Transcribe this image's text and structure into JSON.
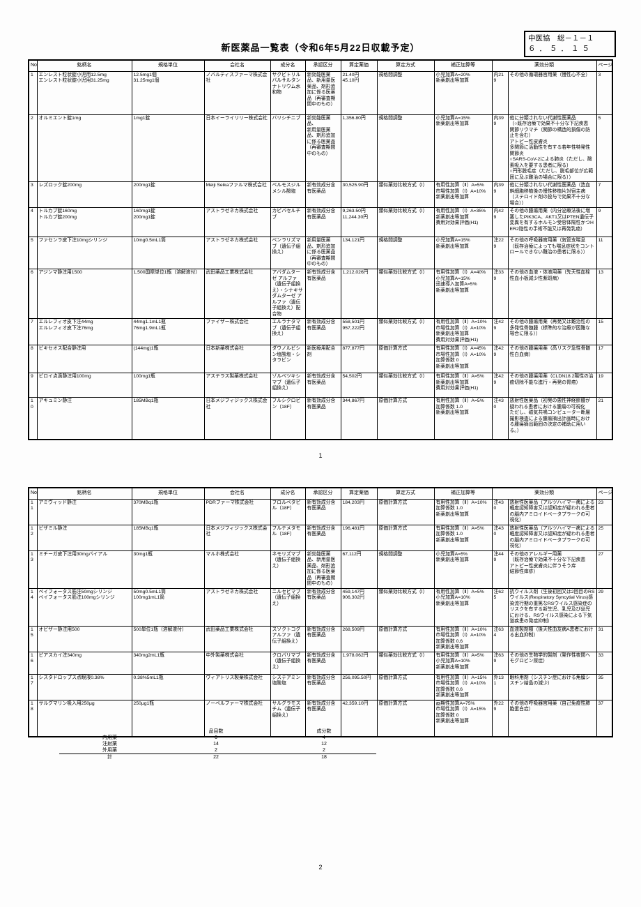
{
  "doc": {
    "title": "新医薬品一覧表（令和6年5月22日収載予定）",
    "ref_line1": "中医協　総－１－１",
    "ref_line2": "６．５．１５",
    "page1_number": "1",
    "page2_number": "2"
  },
  "table": {
    "headers": [
      "No.",
      "銘柄名",
      "規格単位",
      "会社名",
      "成分名",
      "承認区分",
      "算定薬価",
      "算定方式",
      "補正加算等",
      "薬効分類",
      "ページ"
    ]
  },
  "rows1": [
    {
      "no": "1",
      "brand": "エンレスト粒状錠小児用12.5mg\nエンレスト粒状錠小児用31.25mg",
      "spec": "12.5mg1個\n31.25mg1個",
      "company": "ノバルティスファーマ株式会社",
      "ingredient": "サクビトリルバルサルタンナトリウム水和物",
      "approval": "新効能医薬品、新用量医薬品、剤形追加に係る医薬品（再審査期間中のもの）",
      "price": "21.40円\n45.10円",
      "method": "規格間調整",
      "addition": "小児加算A=20%\n新薬創出等加算",
      "code": "内219",
      "category": "その他の循環器官用薬（慢性心不全）",
      "page": "3"
    },
    {
      "no": "2",
      "brand": "オルミエント錠1mg",
      "spec": "1mg1錠",
      "company": "日本イーライリリー株式会社",
      "ingredient": "バリシチニブ",
      "approval": "新効能医薬品、\n新用量医薬品、剤形追加に係る医薬品\n（再審査期間中のもの）",
      "price": "1,356.80円",
      "method": "規格間調整",
      "addition": "小児加算A=15%\n新薬創出等加算",
      "code": "内399",
      "category": "他に分類されない代謝性医薬品\n（○既存治療で効果不十分な下記疾患\n関節リウマチ（関節の構造的損傷の防止を含む）\nアトピー性皮膚炎\n多関節に活動性を有する若年性特発性関節炎\n○SARS-CoV-2による肺炎（ただし、酸素吸入を要する患者に限る）\n○円形脱毛症（ただし、脱毛部位が広範囲に及ぶ難治の場合に限る））",
      "page": "5"
    },
    {
      "no": "3",
      "brand": "レズロック錠200mg",
      "spec": "200mg1錠",
      "company": "Meiji Seikaファルマ株式会社",
      "ingredient": "ベルモスジルメシル酸塩",
      "approval": "新有効成分含有医薬品",
      "price": "30,525.90円",
      "method": "類似薬効比較方式（Ⅰ）",
      "addition": "有用性加算（Ⅱ）A=5%\n市場性加算（Ⅰ）A=10%\n新薬創出等加算",
      "code": "内399",
      "category": "他に分類されない代謝性医薬品（造血幹細胞移植後の慢性移植片対宿主病（ステロイド剤の投与で効果不十分な場合））",
      "page": "7"
    },
    {
      "no": "4",
      "brand": "トルカプ錠160mg\nトルカプ錠200mg",
      "spec": "160mg1錠\n200mg1錠",
      "company": "アストラゼネカ株式会社",
      "ingredient": "カピバセルチブ",
      "approval": "新有効成分含有医薬品",
      "price": "9,263.50円\n11,244.30円",
      "method": "類似薬効比較方式（Ⅰ）",
      "addition": "有用性加算（Ⅰ）A=35%\n新薬創出等加算\n費用対効果評価(H1)",
      "code": "内429",
      "category": "その他の腫瘍用薬（内分泌療法後に増悪したPIK3CA、AKT1又はPTEN遺伝子変異を有するホルモン受容体陽性かつHER2陰性の手術不能又は再発乳癌）",
      "page": "9"
    },
    {
      "no": "5",
      "brand": "ファセンラ皮下注10mgシリンジ",
      "spec": "10mg0.5mL1筒",
      "company": "アストラゼネカ株式会社",
      "ingredient": "ベンラリズマブ（遺伝子組換え）",
      "approval": "新用量医薬品、剤形追加に係る医薬品\n（再審査期間中のもの）",
      "price": "134,121円",
      "method": "規格間調整",
      "addition": "小児加算A=15%\n新薬創出等加算",
      "code": "注229",
      "category": "その他の呼吸器官用薬（気管支喘息（既存治療によっても喘息症状をコントロールできない難治の患者に限る））",
      "page": "11"
    },
    {
      "no": "6",
      "brand": "アジンマ静注用1500",
      "spec": "1,500国際単位1瓶（溶解液付）",
      "company": "武田薬品工業株式会社",
      "ingredient": "アバダムターゼ アルファ（遺伝子組換え）・シナキサダムターゼ アルファ（遺伝子組換え）配合物",
      "approval": "新有効成分含有医薬品",
      "price": "1,212,026円",
      "method": "類似薬効比較方式（Ⅰ）",
      "addition": "有用性加算（Ⅰ）A=40%\n小児加算A=15%\n迅速導入加算A=5%\n新薬創出等加算",
      "code": "注339",
      "category": "その他の血液・体液用薬（先天性血栓性血小板減少性紫斑病）",
      "page": "13"
    },
    {
      "no": "7",
      "brand": "エルレフィオ皮下注44mg\nエルレフィオ皮下注76mg",
      "spec": "44mg1.1mL1瓶\n76mg1.9mL1瓶",
      "company": "ファイザー株式会社",
      "ingredient": "エルラナタマブ（遺伝子組換え）",
      "approval": "新有効成分含有医薬品",
      "price": "558,501円\n957,222円",
      "method": "類似薬効比較方式（Ⅰ）",
      "addition": "有用性加算（Ⅱ）A=10%\n市場性加算（Ⅰ）A=10%\n新薬創出等加算\n費用対効果評価(H1)",
      "code": "注429",
      "category": "その他の腫瘍用薬（再発又は難治性の多発性骨髄腫（標準的な治療が困難な場合に限る））",
      "page": "15"
    },
    {
      "no": "8",
      "brand": "ビキセオス配合静注用",
      "spec": "(144mg)1瓶",
      "company": "日本新薬株式会社",
      "ingredient": "ダウノルビシン塩酸塩・シタラビン",
      "approval": "新医療用配合剤",
      "price": "877,877円",
      "method": "原価計算方式",
      "addition": "有用性加算（Ⅰ）A=45%\n市場性加算（Ⅰ）A=10%\n加算係数 0\n新薬創出等加算",
      "code": "注429",
      "category": "その他の腫瘍用薬（高リスク急性骨髄性白血病）",
      "page": "17"
    },
    {
      "no": "9",
      "brand": "ビロイ点滴静注用100mg",
      "spec": "100mg1瓶",
      "company": "アステラス製薬株式会社",
      "ingredient": "ゾルベツキシマブ（遺伝子組換え）",
      "approval": "新有効成分含有医薬品",
      "price": "54,502円",
      "method": "類似薬効比較方式（Ⅰ）",
      "addition": "有用性加算（Ⅱ）A=5%\n新薬創出等加算\n費用対効果評価(H1)",
      "code": "注429",
      "category": "その他の腫瘍用薬（CLDN18.2陽性の治癒切除不能な進行・再発の胃癌）",
      "page": "19"
    },
    {
      "no": "10",
      "brand": "アキュミン静注",
      "spec": "185MBq1瓶",
      "company": "日本メジフィジックス株式会社",
      "ingredient": "フルシクロビン（18F）",
      "approval": "新有効成分含有医薬品",
      "price": "344,867円",
      "method": "原価計算方式",
      "addition": "有用性加算（Ⅱ）A=5%\n加算係数 1.0\n新薬創出等加算",
      "code": "注430",
      "category": "放射性医薬品（初発の悪性神経膠腫が疑われる患者における腫瘍の可視化\nただし、磁気共鳴コンピューター断層撮影検査による腫瘍摘出計画時における腫瘍摘出範囲の決定の補助に用いる。）",
      "page": "21"
    }
  ],
  "rows2": [
    {
      "no": "11",
      "brand": "アミヴィッド静注",
      "spec": "370MBq1瓶",
      "company": "PDRファーマ株式会社",
      "ingredient": "フロルベタピル（18F）",
      "approval": "新有効成分含有医薬品",
      "price": "184,203円",
      "method": "原価計算方式",
      "addition": "有用性加算（Ⅱ）A=10%\n加算係数 1.0\n新薬創出等加算",
      "code": "注430",
      "category": "放射性医薬品（アルツハイマー病による軽度認知障害又は認知症が疑われる患者の脳内アミロイドベータプラークの可視化）",
      "page": "23"
    },
    {
      "no": "12",
      "brand": "ビザミル静注",
      "spec": "185MBq1瓶",
      "company": "日本メジフィジックス株式会社",
      "ingredient": "フルテメタモル（18F）",
      "approval": "新有効成分含有医薬品",
      "price": "196,481円",
      "method": "原価計算方式",
      "addition": "有用性加算（Ⅱ）A=5%\n加算係数 1.0\n新薬創出等加算",
      "code": "注430",
      "category": "放射性医薬品（アルツハイマー病による軽度認知障害又は認知症が疑われる患者の脳内アミロイドベータプラークの可視化）",
      "page": "25"
    },
    {
      "no": "13",
      "brand": "ミチーガ皮下注用30mgバイアル",
      "spec": "30mg1瓶",
      "company": "マルホ株式会社",
      "ingredient": "ネモリズマブ（遺伝子組換え）",
      "approval": "新効能医薬品、新用量医薬品、剤形追加に係る医薬品（再審査期間中のもの）",
      "price": "67,112円",
      "method": "規格間調整",
      "addition": "小児加算A=5%\n新薬創出等加算",
      "code": "注449",
      "category": "その他のアレルギー用薬\n（既存治療で効果不十分な下記疾患\nアトピー性皮膚炎に伴うそう痒\n結節性痒疹）",
      "page": "27"
    },
    {
      "no": "14",
      "brand": "ベイフォータス筋注50mgシリンジ\nベイフォータス筋注100mgシリンジ",
      "spec": "50mg0.5mL1筒\n100mg1mL1筒",
      "company": "アストラゼネカ株式会社",
      "ingredient": "ニルセビマブ（遺伝子組換え）",
      "approval": "新有効成分含有医薬品",
      "price": "459,147円\n906,302円",
      "method": "類似薬効比較方式（Ⅰ）",
      "addition": "有用性加算（Ⅱ）A=5%\n小児加算A=10%\n新薬創出等加算",
      "code": "注625",
      "category": "抗ウイルス剤（生後初回又は2回目のRSウイルス(Respiratory Syncytial Virus)感染流行期の重篤なRSウイルス感染症のリスクを有する新生児、乳児及び幼児における、RSウイルス感染による下気道疾患の発症抑制）",
      "page": "29"
    },
    {
      "no": "15",
      "brand": "オビザー静注用500",
      "spec": "500単位1瓶（溶解液付）",
      "company": "武田薬品工業株式会社",
      "ingredient": "スソクトコグ アルファ（遺伝子組換え）",
      "approval": "新有効成分含有医薬品",
      "price": "268,509円",
      "method": "原価計算方式",
      "addition": "有用性加算（Ⅱ）A=10%\n市場性加算（Ⅰ）A=10%\n加算係数 0.6\n新薬創出等加算",
      "code": "注634",
      "category": "血液製剤類（後天性血友病A患者における出血抑制）",
      "page": "31"
    },
    {
      "no": "16",
      "brand": "ピアスカイ注340mg",
      "spec": "340mg2mL1瓶",
      "company": "中外製薬株式会社",
      "ingredient": "クロバリマブ（遺伝子組換え）",
      "approval": "新有効成分含有医薬品",
      "price": "1,978,062円",
      "method": "類似薬効比較方式（Ⅰ）",
      "addition": "有用性加算（Ⅱ）A=5%\n小児加算A=10%\n新薬創出等加算",
      "code": "注639",
      "category": "その他の生物学的製剤（発作性夜間ヘモグロビン尿症）",
      "page": "33"
    },
    {
      "no": "17",
      "brand": "シスタドロップス点眼液0.38%",
      "spec": "0.38%5mL1瓶",
      "company": "ヴィアトリス製薬株式会社",
      "ingredient": "システアミン塩酸塩",
      "approval": "新有効成分含有医薬品",
      "price": "256,095.50円",
      "method": "原価計算方式",
      "addition": "有用性加算（Ⅱ）A=15%\n市場性加算（Ⅰ）A=10%\n加算係数 0.6\n新薬創出等加算",
      "code": "外131",
      "category": "眼科用剤（シスチン症における角膜シスチン結晶の減少）",
      "page": "35"
    },
    {
      "no": "18",
      "brand": "サルグマリン吸入用250μg",
      "spec": "250μg1瓶",
      "company": "ノーベルファーマ株式会社",
      "ingredient": "サルグラモスチム（遺伝子組換え）",
      "approval": "新有効成分含有医薬品",
      "price": "42,359.10円",
      "method": "原価計算方式",
      "addition": "画期性加算A=75%\n市場性加算（Ⅰ）A=15%\n加算係数 0\n新薬創出等加算",
      "code": "外229",
      "category": "その他の呼吸器官用薬（自己免疫性肺胞蛋白症）",
      "page": "37"
    }
  ],
  "summary": {
    "col_items": "品目数",
    "col_ingredients": "成分数",
    "rows": [
      {
        "label": "内用薬",
        "items": "6",
        "ingredients": "4",
        "total": false
      },
      {
        "label": "注射薬",
        "items": "14",
        "ingredients": "12",
        "total": false
      },
      {
        "label": "外用薬",
        "items": "2",
        "ingredients": "2",
        "total": false
      },
      {
        "label": "計",
        "items": "22",
        "ingredients": "18",
        "total": true
      }
    ]
  }
}
